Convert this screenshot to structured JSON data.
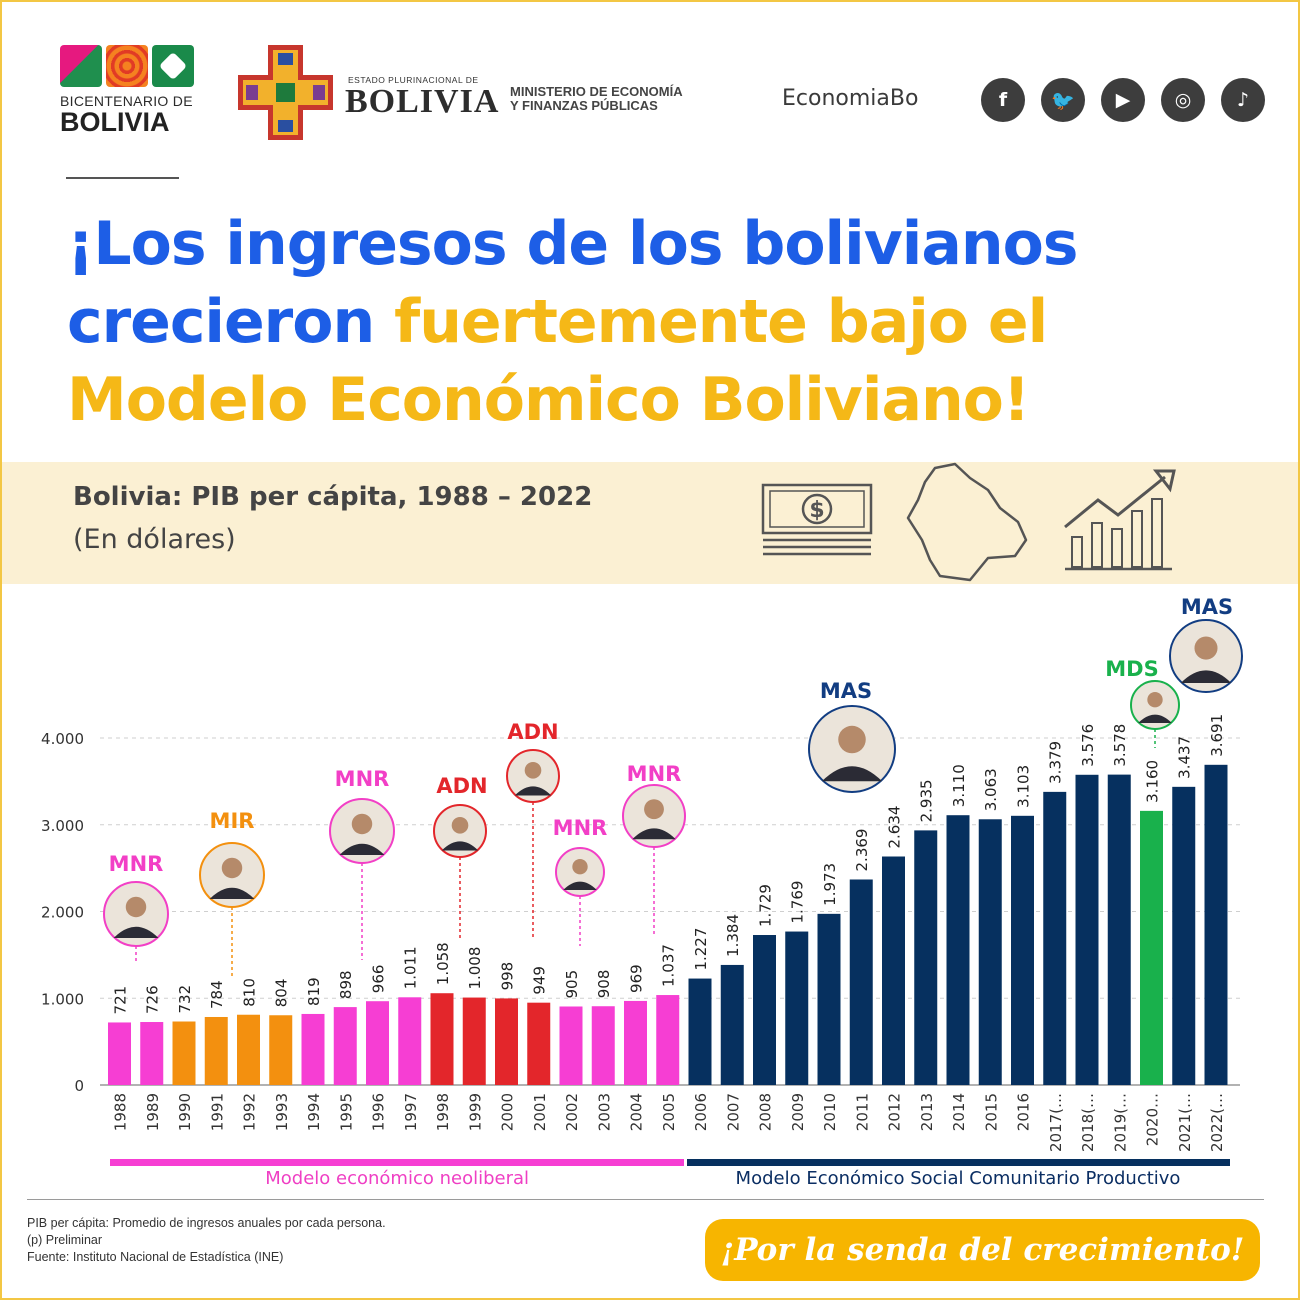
{
  "logos": {
    "bicentenario_line1": "BICENTENARIO DE",
    "bicentenario_line2": "BOLIVIA",
    "estado": "ESTADO PLURINACIONAL DE",
    "bolivia": "BOLIVIA",
    "ministerio_line1": "MINISTERIO DE ECONOMÍA",
    "ministerio_line2": "Y FINANZAS PÚBLICAS"
  },
  "brand": "EconomiaBo",
  "social": [
    {
      "icon": "facebook-icon",
      "glyph": "f"
    },
    {
      "icon": "twitter-icon",
      "glyph": "🐦"
    },
    {
      "icon": "youtube-icon",
      "glyph": "▶"
    },
    {
      "icon": "instagram-icon",
      "glyph": "◎"
    },
    {
      "icon": "tiktok-icon",
      "glyph": "♪"
    }
  ],
  "headline": {
    "part1": "¡Los ingresos de los bolivianos crecieron ",
    "part2": "fuertemente bajo el Modelo Económico Boliviano!"
  },
  "subtitle": "Bolivia: PIB per cápita, 1988 – 2022",
  "unit": "(En dólares)",
  "chart_data": {
    "type": "bar",
    "ylim": [
      0,
      4000
    ],
    "yticks": [
      0,
      1000,
      2000,
      3000,
      4000
    ],
    "ytick_labels": [
      "0",
      "1.000",
      "2.000",
      "3.000",
      "4.000"
    ],
    "categories": [
      "1988",
      "1989",
      "1990",
      "1991",
      "1992",
      "1993",
      "1994",
      "1995",
      "1996",
      "1997",
      "1998",
      "1999",
      "2000",
      "2001",
      "2002",
      "2003",
      "2004",
      "2005",
      "2006",
      "2007",
      "2008",
      "2009",
      "2010",
      "2011",
      "2012",
      "2013",
      "2014",
      "2015",
      "2016",
      "2017(…",
      "2018(…",
      "2019(…",
      "2020…",
      "2021(…",
      "2022(…"
    ],
    "values": [
      721,
      726,
      732,
      784,
      810,
      804,
      819,
      898,
      966,
      1011,
      1058,
      1008,
      998,
      949,
      905,
      908,
      969,
      1037,
      1227,
      1384,
      1729,
      1769,
      1973,
      2369,
      2634,
      2935,
      3110,
      3063,
      3103,
      3379,
      3576,
      3578,
      3160,
      3437,
      3691
    ],
    "value_labels": [
      "721",
      "726",
      "732",
      "784",
      "810",
      "804",
      "819",
      "898",
      "966",
      "1.011",
      "1.058",
      "1.008",
      "998",
      "949",
      "905",
      "908",
      "969",
      "1.037",
      "1.227",
      "1.384",
      "1.729",
      "1.769",
      "1.973",
      "2.369",
      "2.634",
      "2.935",
      "3.110",
      "3.063",
      "3.103",
      "3.379",
      "3.576",
      "3.578",
      "3.160",
      "3.437",
      "3.691"
    ],
    "bar_colors": [
      "#f63ed3",
      "#f63ed3",
      "#f3900f",
      "#f3900f",
      "#f3900f",
      "#f3900f",
      "#f63ed3",
      "#f63ed3",
      "#f63ed3",
      "#f63ed3",
      "#e3262b",
      "#e3262b",
      "#e3262b",
      "#e3262b",
      "#f63ed3",
      "#f63ed3",
      "#f63ed3",
      "#f63ed3",
      "#06305f",
      "#06305f",
      "#06305f",
      "#06305f",
      "#06305f",
      "#06305f",
      "#06305f",
      "#06305f",
      "#06305f",
      "#06305f",
      "#06305f",
      "#06305f",
      "#06305f",
      "#06305f",
      "#19b14c",
      "#06305f",
      "#06305f"
    ],
    "party_labels": [
      {
        "text": "MNR",
        "bar": 0,
        "color": "#f23fc6"
      },
      {
        "text": "MIR",
        "bar": 3,
        "color": "#f3900f"
      },
      {
        "text": "MNR",
        "bar": 7,
        "color": "#f23fc6"
      },
      {
        "text": "ADN",
        "bar": 10,
        "color": "#e3262b"
      },
      {
        "text": "ADN",
        "bar": 13,
        "color": "#e3262b"
      },
      {
        "text": "MNR",
        "bar": 14,
        "color": "#f23fc6"
      },
      {
        "text": "MNR",
        "bar": 17,
        "color": "#f23fc6"
      },
      {
        "text": "MAS",
        "bar": 23,
        "color": "#123d82"
      },
      {
        "text": "MDS",
        "bar": 32,
        "color": "#19b14c"
      },
      {
        "text": "MAS",
        "bar": 34,
        "color": "#123d82"
      }
    ],
    "segments": [
      {
        "label": "Modelo económico neoliberal",
        "from": 0,
        "to": 17,
        "color": "#f63ed3",
        "text_color": "#ef3fc4"
      },
      {
        "label": "Modelo Económico Social Comunitario Productivo",
        "from": 18,
        "to": 34,
        "color": "#06305f",
        "text_color": "#0b2e63"
      }
    ]
  },
  "footer": {
    "line1": "PIB per cápita: Promedio de ingresos anuales por cada persona.",
    "line2": "(p) Preliminar",
    "line3": "Fuente: Instituto Nacional de Estadística (INE)"
  },
  "slogan": "¡Por la senda del crecimiento!"
}
